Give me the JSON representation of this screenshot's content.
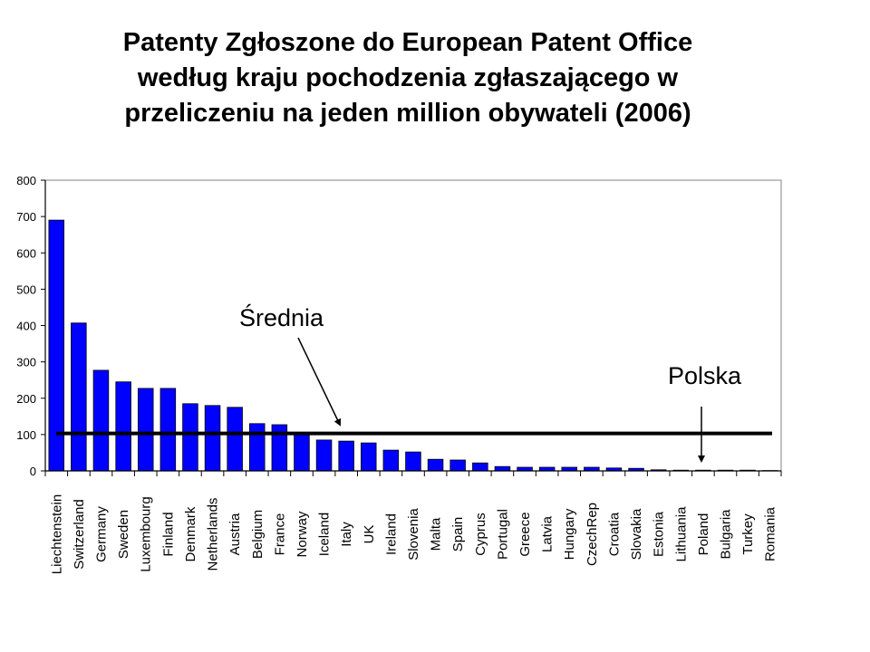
{
  "title": {
    "line1": "Patenty Zgłoszone do European Patent Office",
    "line2": "według kraju pochodzenia zgłaszającego w",
    "line3": "przeliczeniu na jeden million obywateli (2006)"
  },
  "annotations": {
    "average_label": "Średnia",
    "poland_label": "Polska"
  },
  "colors": {
    "bar": "#0000FF",
    "bar_border": "#000080",
    "average_line": "#000000",
    "plot_border": "#808080"
  },
  "chart_data": {
    "type": "bar",
    "title": "Patenty Zgłoszone do European Patent Office według kraju pochodzenia zgłaszającego w przeliczeniu na jeden million obywateli (2006)",
    "xlabel": "",
    "ylabel": "",
    "ylim": [
      0,
      800
    ],
    "yticks": [
      0,
      100,
      200,
      300,
      400,
      500,
      600,
      700,
      800
    ],
    "grid": false,
    "legend": null,
    "categories": [
      "Liechtenstein",
      "Switzerland",
      "Germany",
      "Sweden",
      "Luxembourg",
      "Finland",
      "Denmark",
      "Netherlands",
      "Austria",
      "Belgium",
      "France",
      "Norway",
      "Iceland",
      "Italy",
      "UK",
      "Ireland",
      "Slovenia",
      "Malta",
      "Spain",
      "Cyprus",
      "Portugal",
      "Greece",
      "Latvia",
      "Hungary",
      "CzechRep",
      "Croatia",
      "Slovakia",
      "Estonia",
      "Lithuania",
      "Poland",
      "Bulgaria",
      "Turkey",
      "Romania"
    ],
    "values": [
      690,
      407,
      277,
      245,
      227,
      227,
      185,
      180,
      175,
      130,
      127,
      100,
      85,
      82,
      77,
      57,
      52,
      32,
      30,
      22,
      12,
      10,
      10,
      10,
      10,
      8,
      7,
      3,
      2,
      2,
      2,
      2,
      1
    ],
    "reference_lines": [
      {
        "name": "Średnia",
        "type": "horizontal",
        "value": 103
      }
    ],
    "annotations": [
      {
        "text": "Średnia",
        "points_to": "average line"
      },
      {
        "text": "Polska",
        "points_to": "Poland"
      }
    ]
  }
}
